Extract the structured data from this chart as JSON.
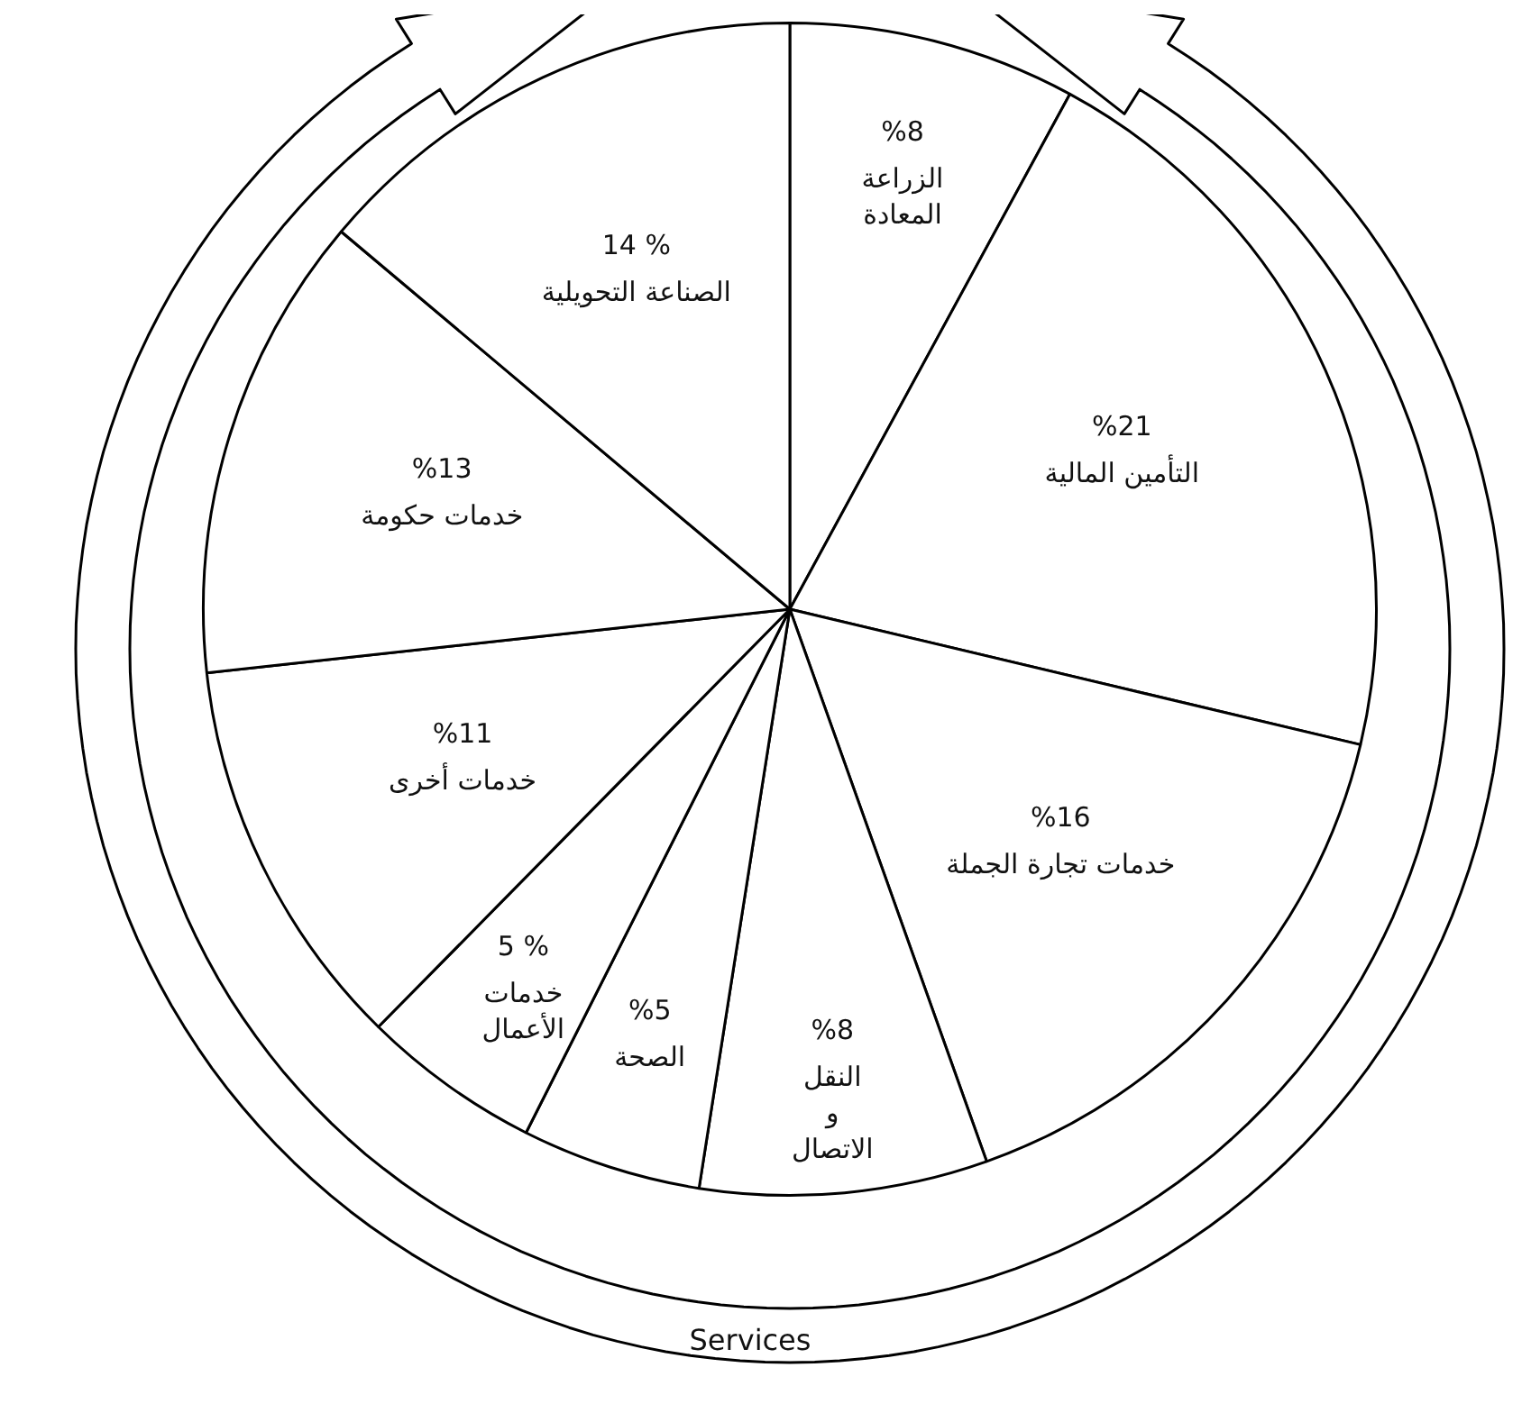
{
  "chart_data": {
    "type": "pie",
    "categories": [
      "الزراعة المعادة",
      "التأمين المالية",
      "خدمات تجارة الجملة",
      "النقل و الاتصال",
      "الصحة",
      "خدمات الأعمال",
      "خدمات أخرى",
      "خدمات حكومة",
      "الصناعة التحويلية"
    ],
    "values": [
      8,
      21,
      16,
      8,
      5,
      5,
      11,
      13,
      14
    ],
    "value_labels": [
      "%8",
      "%21",
      "%16",
      "%8",
      "%5",
      "5 %",
      "%11",
      "%13",
      "14 %"
    ],
    "colors": [
      "#ffffff",
      "#ffffff",
      "#ffffff",
      "#ffffff",
      "#ffffff",
      "#ffffff",
      "#ffffff",
      "#ffffff",
      "#ffffff"
    ],
    "annotations": [
      "Services"
    ],
    "legend": false
  }
}
